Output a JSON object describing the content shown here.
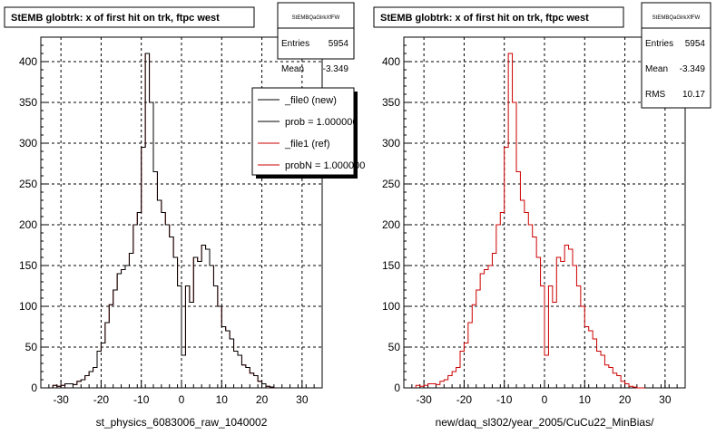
{
  "chart_data": [
    {
      "type": "histogram",
      "title": "StEMB globtrk: x of first hit on trk, ftpc west",
      "xlabel": "st_physics_6083006_raw_1040002",
      "xlim": [
        -35,
        35
      ],
      "ylim": [
        0,
        430
      ],
      "x_ticks": [
        -30,
        -20,
        -10,
        0,
        10,
        20,
        30
      ],
      "y_ticks": [
        0,
        50,
        100,
        150,
        200,
        250,
        300,
        350,
        400
      ],
      "grid": true,
      "stats": {
        "name": "StEMBQaGlrkXfFW",
        "entries_label": "Entries",
        "entries": "5954",
        "mean_label": "Mean",
        "mean": "-3.349"
      },
      "legend": [
        {
          "label": "_file0 (new)",
          "color": "#000000"
        },
        {
          "label": "prob = 1.000000",
          "color": "#000000"
        },
        {
          "label": "_file1 (ref)",
          "color": "#cc0000"
        },
        {
          "label": "probN = 1.000000",
          "color": "#cc0000"
        }
      ],
      "bin_edges": [
        -32,
        -31,
        -30,
        -29,
        -28,
        -27,
        -26,
        -25,
        -24,
        -23,
        -22,
        -21,
        -20,
        -19,
        -18,
        -17,
        -16,
        -15,
        -14,
        -13,
        -12,
        -11,
        -10,
        -9,
        -8,
        -7,
        -6,
        -5,
        -4,
        -3,
        -2,
        -1,
        0,
        1,
        2,
        3,
        4,
        5,
        6,
        7,
        8,
        9,
        10,
        11,
        12,
        13,
        14,
        15,
        16,
        17,
        18,
        19,
        20,
        21,
        22,
        23,
        24,
        25
      ],
      "series": [
        {
          "color": "#cc0000",
          "values": [
            3,
            2,
            3,
            5,
            5,
            4,
            8,
            10,
            15,
            20,
            25,
            45,
            55,
            80,
            102,
            120,
            140,
            145,
            150,
            165,
            200,
            215,
            295,
            410,
            350,
            265,
            230,
            215,
            200,
            185,
            160,
            125,
            40,
            125,
            105,
            160,
            155,
            175,
            170,
            150,
            125,
            100,
            75,
            70,
            60,
            45,
            40,
            28,
            25,
            18,
            15,
            8,
            5,
            2,
            1,
            0,
            0
          ]
        },
        {
          "color": "#000000",
          "values": [
            3,
            2,
            3,
            5,
            5,
            4,
            8,
            10,
            15,
            20,
            25,
            45,
            55,
            80,
            102,
            120,
            140,
            145,
            150,
            165,
            200,
            215,
            295,
            410,
            350,
            265,
            230,
            215,
            200,
            185,
            160,
            125,
            40,
            125,
            105,
            160,
            155,
            175,
            170,
            150,
            125,
            100,
            75,
            70,
            60,
            45,
            40,
            28,
            25,
            18,
            15,
            8,
            5,
            2,
            1,
            0,
            0
          ]
        }
      ]
    },
    {
      "type": "histogram",
      "title": "StEMB globtrk: x of first hit on trk, ftpc west",
      "xlabel": "new/daq_sl302/year_2005/CuCu22_MinBias/",
      "xlim": [
        -35,
        35
      ],
      "ylim": [
        0,
        430
      ],
      "x_ticks": [
        -30,
        -20,
        -10,
        0,
        10,
        20,
        30
      ],
      "y_ticks": [
        0,
        50,
        100,
        150,
        200,
        250,
        300,
        350,
        400
      ],
      "grid": true,
      "stats": {
        "name": "StEMBQaGlrkXfFW",
        "entries_label": "Entries",
        "entries": "5954",
        "mean_label": "Mean",
        "mean": "-3.349",
        "rms_label": "RMS",
        "rms": "10.17"
      },
      "bin_edges": [
        -32,
        -31,
        -30,
        -29,
        -28,
        -27,
        -26,
        -25,
        -24,
        -23,
        -22,
        -21,
        -20,
        -19,
        -18,
        -17,
        -16,
        -15,
        -14,
        -13,
        -12,
        -11,
        -10,
        -9,
        -8,
        -7,
        -6,
        -5,
        -4,
        -3,
        -2,
        -1,
        0,
        1,
        2,
        3,
        4,
        5,
        6,
        7,
        8,
        9,
        10,
        11,
        12,
        13,
        14,
        15,
        16,
        17,
        18,
        19,
        20,
        21,
        22,
        23,
        24,
        25
      ],
      "series": [
        {
          "color": "#cc0000",
          "values": [
            3,
            2,
            3,
            5,
            5,
            4,
            8,
            10,
            15,
            20,
            25,
            45,
            55,
            80,
            102,
            120,
            140,
            145,
            150,
            165,
            200,
            215,
            295,
            410,
            350,
            265,
            230,
            215,
            200,
            185,
            160,
            125,
            40,
            125,
            105,
            160,
            155,
            175,
            170,
            150,
            125,
            100,
            75,
            70,
            60,
            45,
            40,
            28,
            25,
            18,
            15,
            8,
            5,
            2,
            1,
            0,
            0
          ]
        }
      ]
    }
  ]
}
